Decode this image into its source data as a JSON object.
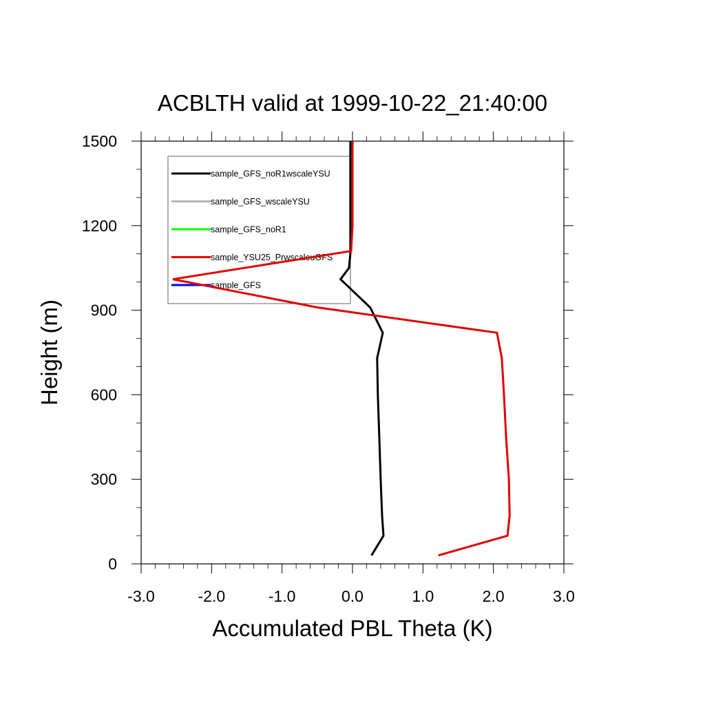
{
  "chart_data": {
    "type": "line",
    "title": "ACBLTH valid at 1999-10-22_21:40:00",
    "xlabel": "Accumulated PBL Theta (K)",
    "ylabel": "Height (m)",
    "xlim": [
      -3.0,
      3.0
    ],
    "ylim": [
      0,
      1500
    ],
    "xticks": [
      "-3.0",
      "-2.0",
      "-1.0",
      "0.0",
      "1.0",
      "2.0",
      "3.0"
    ],
    "yticks": [
      "0",
      "300",
      "600",
      "900",
      "1200",
      "1500"
    ],
    "x_tick_values": [
      -3,
      -2,
      -1,
      0,
      1,
      2,
      3
    ],
    "y_tick_values": [
      0,
      300,
      600,
      900,
      1200,
      1500
    ],
    "grid": false,
    "legend_position": "top-left",
    "series": [
      {
        "name": "sample_GFS_noR1wscaleYSU",
        "color": "#000000",
        "x": [
          0.27,
          0.44,
          0.42,
          0.4,
          0.38,
          0.36,
          0.35,
          0.43,
          0.25,
          -0.17,
          -0.05,
          -0.03,
          -0.03,
          -0.03,
          -0.03
        ],
        "y": [
          30,
          100,
          170,
          300,
          450,
          600,
          730,
          820,
          910,
          1010,
          1050,
          1100,
          1200,
          1300,
          1500
        ]
      },
      {
        "name": "sample_GFS_wscaleYSU",
        "color": "#b4b4b4",
        "x": [],
        "y": []
      },
      {
        "name": "sample_GFS_noR1",
        "color": "#00ff00",
        "x": [],
        "y": []
      },
      {
        "name": "sample_YSU25_PrwscaleuGFS",
        "color": "#e00000",
        "x": [
          1.22,
          2.2,
          2.23,
          2.22,
          2.18,
          2.15,
          2.12,
          2.05,
          -0.5,
          -2.55,
          -0.02,
          0.0,
          0.0,
          0.0,
          0.0
        ],
        "y": [
          30,
          100,
          170,
          300,
          450,
          600,
          730,
          820,
          910,
          1010,
          1110,
          1200,
          1300,
          1400,
          1500
        ]
      },
      {
        "name": "sample_GFS",
        "color": "#0000ff",
        "x": [],
        "y": []
      }
    ]
  }
}
